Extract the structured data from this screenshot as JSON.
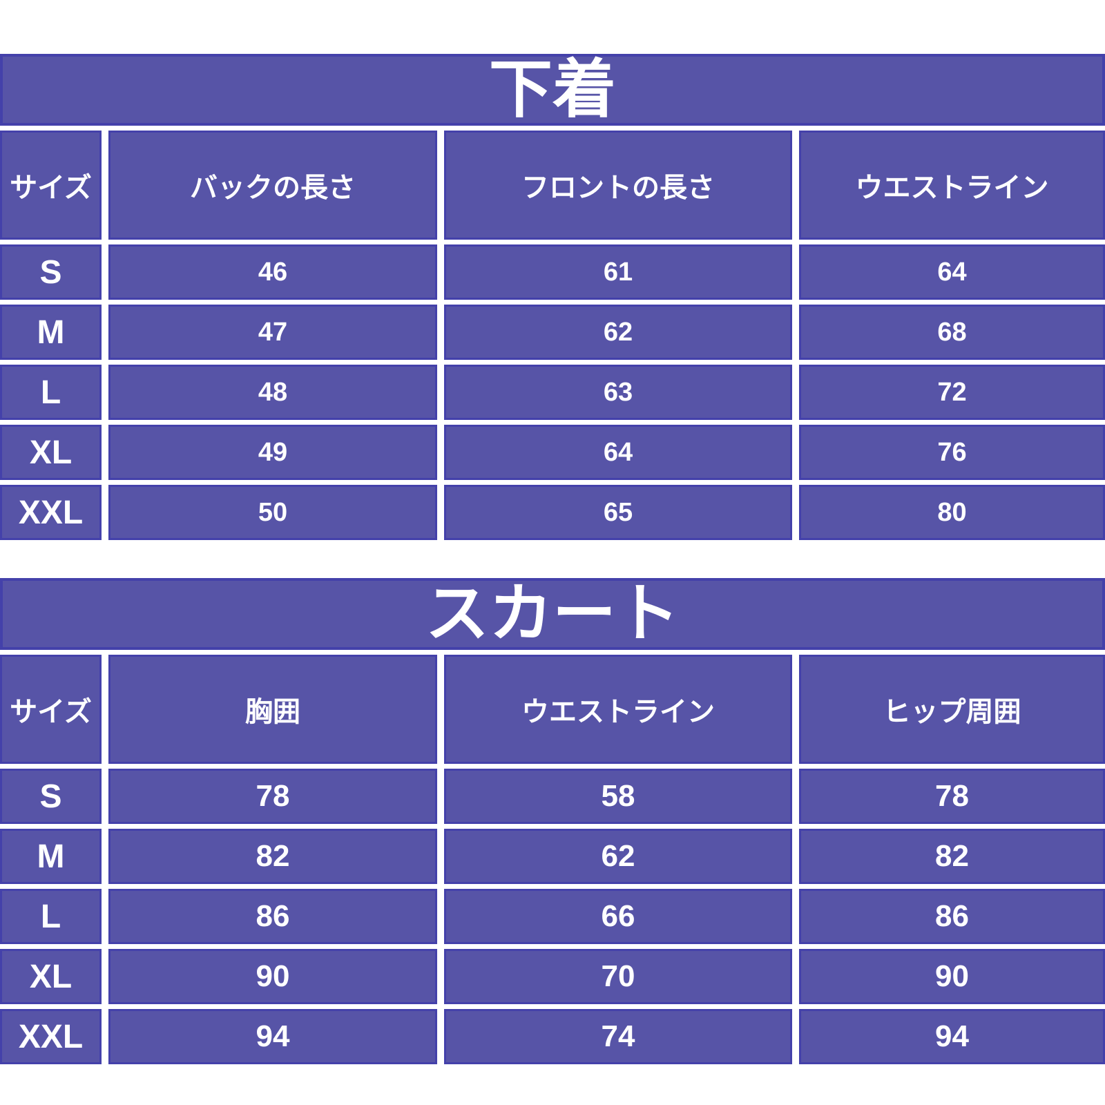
{
  "colors": {
    "cell_fill": "#5754a7",
    "cell_border": "#4441aa",
    "text": "#ffffff",
    "background": "#ffffff"
  },
  "chart_data": [
    {
      "type": "table",
      "title": "下着",
      "columns": [
        "サイズ",
        "バックの長さ",
        "フロントの長さ",
        "ウエストライン"
      ],
      "rows": [
        [
          "S",
          "46",
          "61",
          "64"
        ],
        [
          "M",
          "47",
          "62",
          "68"
        ],
        [
          "L",
          "48",
          "63",
          "72"
        ],
        [
          "XL",
          "49",
          "64",
          "76"
        ],
        [
          "XXL",
          "50",
          "65",
          "80"
        ]
      ]
    },
    {
      "type": "table",
      "title": "スカート",
      "columns": [
        "サイズ",
        "胸囲",
        "ウエストライン",
        "ヒップ周囲"
      ],
      "rows": [
        [
          "S",
          "78",
          "58",
          "78"
        ],
        [
          "M",
          "82",
          "62",
          "82"
        ],
        [
          "L",
          "86",
          "66",
          "86"
        ],
        [
          "XL",
          "90",
          "70",
          "90"
        ],
        [
          "XXL",
          "94",
          "74",
          "94"
        ]
      ]
    }
  ]
}
